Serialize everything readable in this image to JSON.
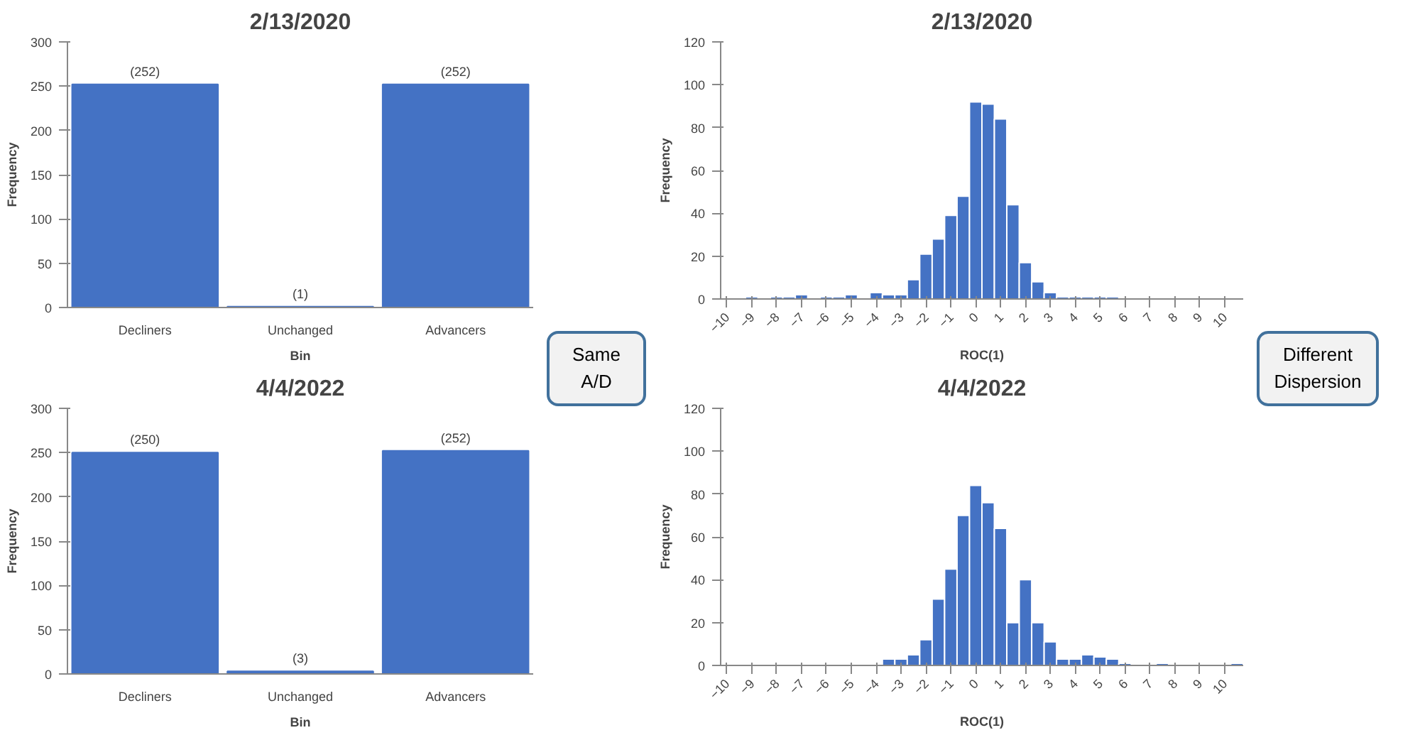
{
  "chart_data": [
    {
      "type": "bar",
      "title": "2/13/2020",
      "xlabel": "Bin",
      "ylabel": "Frequency",
      "categories": [
        "Decliners",
        "Unchanged",
        "Advancers"
      ],
      "values": [
        252,
        1,
        252
      ],
      "value_labels": [
        "(252)",
        "(1)",
        "(252)"
      ],
      "color": "#4472c4",
      "ylim": [
        0,
        300
      ],
      "yticks": [
        0,
        50,
        100,
        150,
        200,
        250,
        300
      ]
    },
    {
      "type": "histogram",
      "title": "2/13/2020",
      "xlabel": "ROC(1)",
      "ylabel": "Frequency",
      "color": "#4472c4",
      "bins": [
        -10.25,
        -9.75,
        -9.25,
        -8.75,
        -8.25,
        -7.75,
        -7.25,
        -6.75,
        -6.25,
        -5.75,
        -5.25,
        -4.75,
        -4.25,
        -3.75,
        -3.25,
        -2.75,
        -2.25,
        -1.75,
        -1.25,
        -0.75,
        -0.25,
        0.25,
        0.75,
        1.25,
        1.75,
        2.25,
        2.75,
        3.25,
        3.75,
        4.25,
        4.75,
        5.25,
        5.75,
        6.25,
        6.75,
        7.25,
        7.75,
        8.25,
        8.75,
        9.25,
        9.75,
        10.25,
        10.75
      ],
      "values": [
        0,
        0,
        1,
        0,
        1,
        1,
        2,
        0,
        1,
        1,
        2,
        0,
        3,
        2,
        2,
        9,
        21,
        28,
        39,
        48,
        92,
        91,
        84,
        44,
        17,
        8,
        3,
        1,
        1,
        1,
        1,
        1,
        null,
        null,
        null,
        null,
        null,
        0,
        0,
        0,
        0,
        0
      ],
      "xlim": [
        -10.25,
        10.75
      ],
      "xticks": [
        -10,
        -9,
        -8,
        -7,
        -6,
        -5,
        -4,
        -3,
        -2,
        -1,
        0,
        1,
        2,
        3,
        4,
        5,
        6,
        7,
        8,
        9,
        10
      ],
      "ylim": [
        0,
        120
      ],
      "yticks": [
        0,
        20,
        40,
        60,
        80,
        100,
        120
      ]
    },
    {
      "type": "bar",
      "title": "4/4/2022",
      "xlabel": "Bin",
      "ylabel": "Frequency",
      "categories": [
        "Decliners",
        "Unchanged",
        "Advancers"
      ],
      "values": [
        250,
        3,
        252
      ],
      "value_labels": [
        "(250)",
        "(3)",
        "(252)"
      ],
      "color": "#4472c4",
      "ylim": [
        0,
        300
      ],
      "yticks": [
        0,
        50,
        100,
        150,
        200,
        250,
        300
      ]
    },
    {
      "type": "histogram",
      "title": "4/4/2022",
      "xlabel": "ROC(1)",
      "ylabel": "Frequency",
      "color": "#4472c4",
      "bins": [
        -10.25,
        -9.75,
        -9.25,
        -8.75,
        -8.25,
        -7.75,
        -7.25,
        -6.75,
        -6.25,
        -5.75,
        -5.25,
        -4.75,
        -4.25,
        -3.75,
        -3.25,
        -2.75,
        -2.25,
        -1.75,
        -1.25,
        -0.75,
        -0.25,
        0.25,
        0.75,
        1.25,
        1.75,
        2.25,
        2.75,
        3.25,
        3.75,
        4.25,
        4.75,
        5.25,
        5.75,
        6.25,
        6.75,
        7.25,
        7.75,
        8.25,
        8.75,
        9.25,
        9.75,
        10.25,
        10.75
      ],
      "values": [
        0,
        0,
        0,
        0,
        0,
        0,
        0,
        0,
        0,
        0,
        0,
        0,
        0,
        3,
        3,
        5,
        12,
        31,
        45,
        70,
        84,
        76,
        64,
        20,
        40,
        20,
        11,
        3,
        3,
        5,
        4,
        3,
        1,
        0,
        0,
        1,
        0,
        0,
        0,
        0,
        0,
        1
      ],
      "xlim": [
        -10.25,
        10.75
      ],
      "xticks": [
        -10,
        -9,
        -8,
        -7,
        -6,
        -5,
        -4,
        -3,
        -2,
        -1,
        0,
        1,
        2,
        3,
        4,
        5,
        6,
        7,
        8,
        9,
        10
      ],
      "ylim": [
        0,
        120
      ],
      "yticks": [
        0,
        20,
        40,
        60,
        80,
        100,
        120
      ]
    },
    {
      "type": "other",
      "annotations": [
        "Same A/D"
      ]
    },
    {
      "type": "other",
      "annotations": [
        "Different Dispersion"
      ]
    }
  ]
}
